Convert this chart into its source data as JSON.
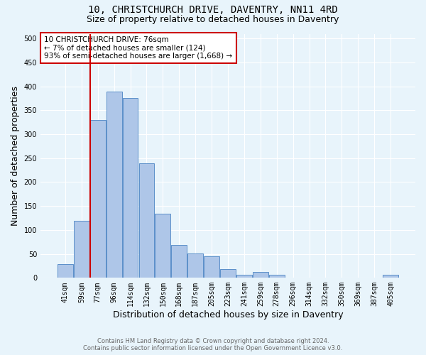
{
  "title_line1": "10, CHRISTCHURCH DRIVE, DAVENTRY, NN11 4RD",
  "title_line2": "Size of property relative to detached houses in Daventry",
  "xlabel": "Distribution of detached houses by size in Daventry",
  "ylabel": "Number of detached properties",
  "categories": [
    "41sqm",
    "59sqm",
    "77sqm",
    "96sqm",
    "114sqm",
    "132sqm",
    "150sqm",
    "168sqm",
    "187sqm",
    "205sqm",
    "223sqm",
    "241sqm",
    "259sqm",
    "278sqm",
    "296sqm",
    "314sqm",
    "332sqm",
    "350sqm",
    "369sqm",
    "387sqm",
    "405sqm"
  ],
  "values": [
    28,
    119,
    330,
    389,
    376,
    240,
    134,
    68,
    51,
    45,
    18,
    6,
    13,
    6,
    0,
    0,
    0,
    0,
    0,
    0,
    6
  ],
  "bar_color": "#aec6e8",
  "bar_edge_color": "#5b8fc9",
  "highlight_bar_index": 2,
  "highlight_line_color": "#cc0000",
  "annotation_text_line1": "10 CHRISTCHURCH DRIVE: 76sqm",
  "annotation_text_line2": "← 7% of detached houses are smaller (124)",
  "annotation_text_line3": "93% of semi-detached houses are larger (1,668) →",
  "annotation_box_color": "#cc0000",
  "ylim": [
    0,
    510
  ],
  "yticks": [
    0,
    50,
    100,
    150,
    200,
    250,
    300,
    350,
    400,
    450,
    500
  ],
  "background_color": "#e8f4fb",
  "plot_bg_color": "#e8f4fb",
  "footer_line1": "Contains HM Land Registry data © Crown copyright and database right 2024.",
  "footer_line2": "Contains public sector information licensed under the Open Government Licence v3.0.",
  "title_fontsize": 10,
  "subtitle_fontsize": 9,
  "tick_fontsize": 7,
  "label_fontsize": 9
}
